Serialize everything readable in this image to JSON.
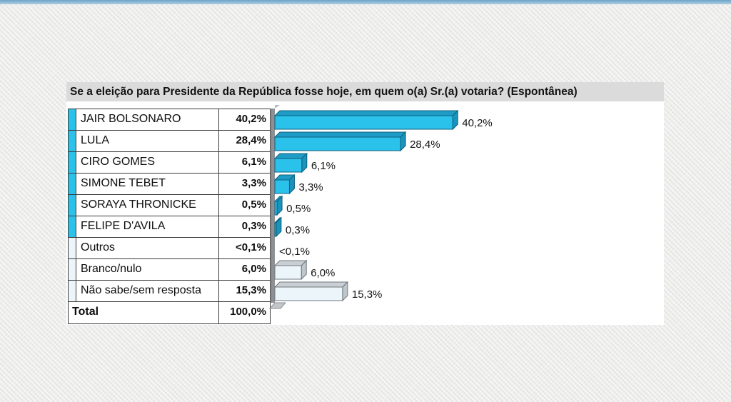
{
  "header": {
    "title": "Se a eleição para Presidente da República fosse hoje, em quem o(a) Sr.(a) votaria? (Espontânea)"
  },
  "table": {
    "rows": [
      {
        "label": "JAIR BOLSONARO",
        "value": "40,2%",
        "group": "candidate"
      },
      {
        "label": "LULA",
        "value": "28,4%",
        "group": "candidate"
      },
      {
        "label": "CIRO GOMES",
        "value": "6,1%",
        "group": "candidate"
      },
      {
        "label": "SIMONE TEBET",
        "value": "3,3%",
        "group": "candidate"
      },
      {
        "label": "SORAYA THRONICKE",
        "value": "0,5%",
        "group": "candidate"
      },
      {
        "label": "FELIPE D'AVILA",
        "value": "0,3%",
        "group": "candidate"
      },
      {
        "label": "Outros",
        "value": "<0,1%",
        "group": "other"
      },
      {
        "label": "Branco/nulo",
        "value": "6,0%",
        "group": "other"
      },
      {
        "label": "Não sabe/sem resposta",
        "value": "15,3%",
        "group": "other"
      }
    ],
    "total": {
      "label": "Total",
      "value": "100,0%"
    }
  },
  "chart_data": {
    "type": "bar",
    "orientation": "horizontal",
    "title": "Se a eleição para Presidente da República fosse hoje, em quem o(a) Sr.(a) votaria? (Espontânea)",
    "categories": [
      "JAIR BOLSONARO",
      "LULA",
      "CIRO GOMES",
      "SIMONE TEBET",
      "SORAYA THRONICKE",
      "FELIPE D'AVILA",
      "Outros",
      "Branco/nulo",
      "Não sabe/sem resposta"
    ],
    "values": [
      40.2,
      28.4,
      6.1,
      3.3,
      0.5,
      0.3,
      0.05,
      6.0,
      15.3
    ],
    "value_labels": [
      "40,2%",
      "28,4%",
      "6,1%",
      "3,3%",
      "0,5%",
      "0,3%",
      "<0,1%",
      "6,0%",
      "15,3%"
    ],
    "groups": [
      "candidate",
      "candidate",
      "candidate",
      "candidate",
      "candidate",
      "candidate",
      "other",
      "other",
      "other"
    ],
    "xlim": [
      0,
      45
    ],
    "grid": false,
    "legend": false,
    "style": "3d"
  },
  "colors": {
    "candidate_front": "#2ac1eb",
    "candidate_top": "#1e9cc6",
    "candidate_side": "#1a93bd",
    "candidate_line": "#0f607e",
    "other_front": "#ebf5fa",
    "other_top": "#c9cfd4",
    "other_side": "#bfc7cc",
    "other_line": "#70787d",
    "wall_face": "#8e9194",
    "wall_edge": "#6b6e71",
    "wall_cap": "#b9bdc0",
    "wall_base": "#c2c6c9",
    "top_strip": "#6ea5c9"
  }
}
